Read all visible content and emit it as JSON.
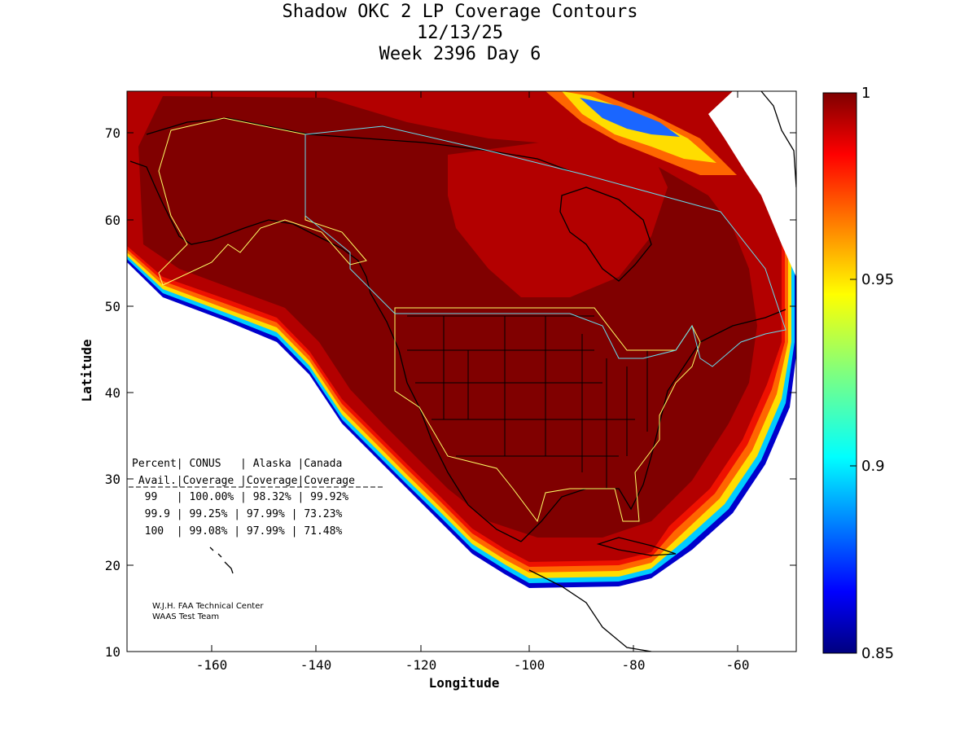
{
  "title": {
    "line1": "Shadow OKC 2 LP Coverage Contours",
    "line2": "12/13/25",
    "line3": "Week 2396 Day 6"
  },
  "axes": {
    "xlabel": "Longitude",
    "ylabel": "Latitude",
    "x_ticks": [
      "-160",
      "-140",
      "-120",
      "-100",
      "-80",
      "-60"
    ],
    "y_ticks": [
      "10",
      "20",
      "30",
      "40",
      "50",
      "60",
      "70"
    ]
  },
  "colorbar": {
    "ticks": [
      "1",
      "0.95",
      "0.9",
      "0.85"
    ]
  },
  "table": {
    "header1": "Percent| CONUS   | Alaska |Canada",
    "header2": " Avail.|Coverage |Coverage|Coverage",
    "row1": "  99   | 100.00% | 98.32% | 99.92%",
    "row2": "  99.9 | 99.25% | 97.99% | 73.23%",
    "row3": "  100  | 99.08% | 97.99% | 71.48%"
  },
  "credit": {
    "line1": "W.J.H. FAA Technical Center",
    "line2": "WAAS Test Team"
  },
  "chart_data": {
    "type": "heatmap",
    "title": "Shadow OKC 2 LP Coverage Contours",
    "xlabel": "Longitude",
    "ylabel": "Latitude",
    "xlim": [
      -175,
      -50
    ],
    "ylim": [
      10,
      75
    ],
    "clim": [
      0.85,
      1.0
    ],
    "colormap": "jet",
    "coverage_table": {
      "columns": [
        "Percent Avail.",
        "CONUS Coverage",
        "Alaska Coverage",
        "Canada Coverage"
      ],
      "rows": [
        [
          "99",
          "100.00%",
          "98.32%",
          "99.92%"
        ],
        [
          "99.9",
          "99.25%",
          "97.99%",
          "73.23%"
        ],
        [
          "100",
          "99.08%",
          "97.99%",
          "71.48%"
        ]
      ]
    }
  },
  "colors": {
    "dark_red": "#800000",
    "mid_red": "#b30000",
    "service_outline": "#ffff66",
    "canada_outline": "#66ddee"
  }
}
